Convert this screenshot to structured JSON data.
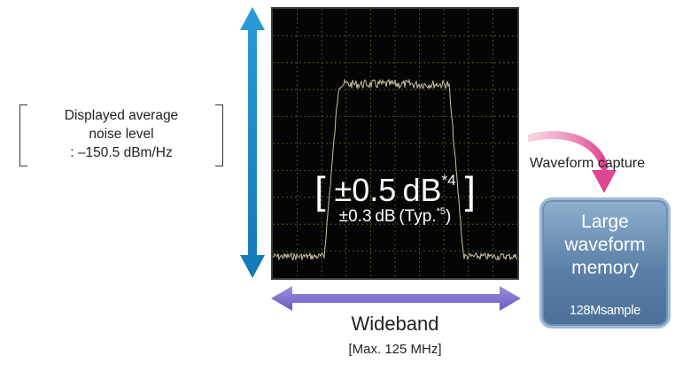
{
  "noise": {
    "line1": "Displayed average",
    "line2": "noise level",
    "line3": ": –150.5 dBm/Hz"
  },
  "accuracy": {
    "main_value": "±0.5 dB",
    "main_note": "*4",
    "typ_value": "±0.3 dB (Typ.",
    "typ_note": "*5",
    "typ_close": ")"
  },
  "wideband": {
    "label": "Wideband",
    "max": "[Max. 125 MHz]"
  },
  "capture": {
    "label": "Waveform capture"
  },
  "memory": {
    "line1": "Large",
    "line2": "waveform",
    "line3": "memory",
    "sub": "128Msample"
  },
  "colors": {
    "vertical_arrow": "#1e8fd0",
    "horizontal_arrow": "#7b6cc8",
    "capture_arrow": "#e0458f",
    "memory_box": "#5b7fa6",
    "trace": "#c9c0a0",
    "grid": "#5a6a2a"
  },
  "spectrum": {
    "noise_floor_level": 0.08,
    "passband_level": 0.72,
    "passband_start": 0.27,
    "passband_end": 0.72
  }
}
